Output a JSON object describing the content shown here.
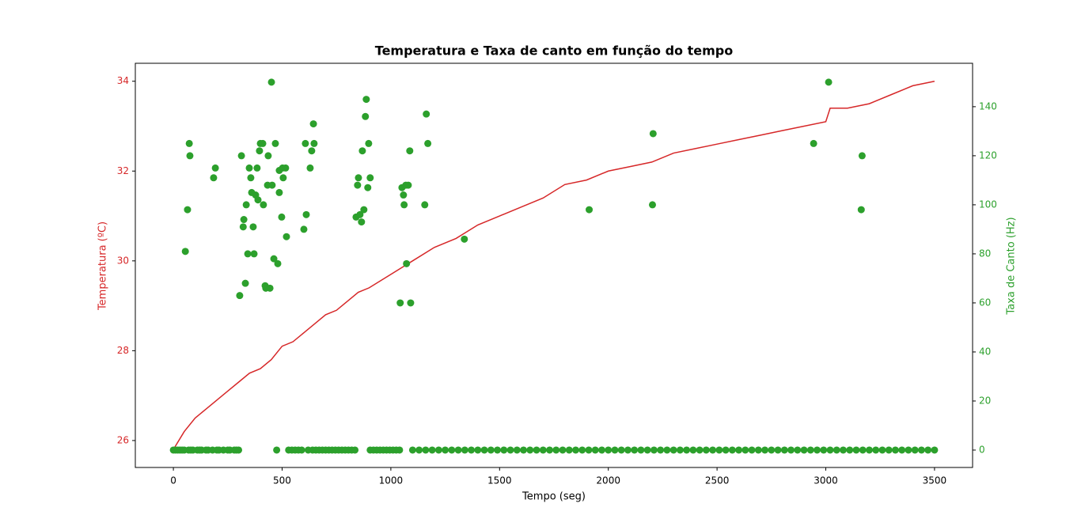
{
  "chart_data": {
    "type": "line",
    "title": "Temperatura e Taxa de canto em função do tempo",
    "xlabel": "Tempo (seg)",
    "ylabel": "Temperatura (ºC)",
    "y2label": "Taxa de Canto (Hz)",
    "xlim": [
      -175,
      3675
    ],
    "xticks": [
      0,
      500,
      1000,
      1500,
      2000,
      2500,
      3000,
      3500
    ],
    "ylim": [
      25.4,
      34.4
    ],
    "yticks": [
      26,
      28,
      30,
      32,
      34
    ],
    "y2lim": [
      -7.1,
      157.7
    ],
    "y2ticks": [
      0,
      20,
      40,
      60,
      80,
      100,
      120,
      140
    ],
    "series": [
      {
        "type": "line",
        "color": "#d62728",
        "x": [
          0,
          50,
          100,
          150,
          200,
          250,
          300,
          350,
          400,
          450,
          500,
          550,
          600,
          650,
          700,
          750,
          800,
          850,
          900,
          1000,
          1100,
          1200,
          1300,
          1400,
          1500,
          1600,
          1700,
          1800,
          1900,
          2000,
          2100,
          2200,
          2300,
          2400,
          2500,
          2600,
          2700,
          2800,
          2900,
          3000,
          3020,
          3100,
          3200,
          3300,
          3400,
          3500
        ],
        "values": [
          25.8,
          26.2,
          26.5,
          26.7,
          26.9,
          27.1,
          27.3,
          27.5,
          27.6,
          27.8,
          28.1,
          28.2,
          28.4,
          28.6,
          28.8,
          28.9,
          29.1,
          29.3,
          29.4,
          29.7,
          30.0,
          30.3,
          30.5,
          30.8,
          31.0,
          31.2,
          31.4,
          31.7,
          31.8,
          32.0,
          32.1,
          32.2,
          32.4,
          32.5,
          32.6,
          32.7,
          32.8,
          32.9,
          33.0,
          33.1,
          33.4,
          33.4,
          33.5,
          33.7,
          33.9,
          34.0
        ]
      },
      {
        "type": "scatter",
        "axis": "y2",
        "color": "#2ca02c",
        "x": [
          0,
          10,
          20,
          30,
          40,
          50,
          70,
          80,
          90,
          110,
          120,
          130,
          150,
          160,
          180,
          200,
          210,
          230,
          250,
          260,
          280,
          290,
          300,
          475,
          530,
          545,
          560,
          575,
          590,
          620,
          640,
          655,
          670,
          685,
          700,
          715,
          730,
          745,
          760,
          775,
          790,
          805,
          820,
          835,
          905,
          920,
          935,
          950,
          965,
          980,
          995,
          1010,
          1025,
          1040,
          1100,
          1130,
          1160,
          1190,
          1220,
          1250,
          1280,
          1310,
          1340,
          1370,
          1400,
          1430,
          1460,
          1490,
          1520,
          1550,
          1580,
          1610,
          1640,
          1670,
          1700,
          1730,
          1760,
          1790,
          1820,
          1850,
          1880,
          1910,
          1940,
          1970,
          2000,
          2030,
          2060,
          2090,
          2120,
          2150,
          2180,
          2210,
          2240,
          2270,
          2300,
          2330,
          2360,
          2390,
          2420,
          2450,
          2480,
          2510,
          2540,
          2570,
          2600,
          2630,
          2660,
          2690,
          2720,
          2750,
          2780,
          2810,
          2840,
          2870,
          2900,
          2930,
          2960,
          2990,
          3020,
          3050,
          3080,
          3110,
          3140,
          3170,
          3200,
          3230,
          3260,
          3290,
          3320,
          3350,
          3380,
          3410,
          3440,
          3470,
          3500,
          55,
          65,
          73,
          76,
          185,
          193,
          305,
          313,
          321,
          324,
          331,
          335,
          342,
          349,
          356,
          360,
          367,
          371,
          378,
          385,
          389,
          396,
          400,
          411,
          414,
          422,
          425,
          433,
          436,
          444,
          451,
          454,
          462,
          469,
          480,
          487,
          487,
          498,
          502,
          505,
          516,
          520,
          600,
          607,
          611,
          629,
          636,
          644,
          647,
          840,
          847,
          851,
          858,
          865,
          869,
          876,
          883,
          887,
          894,
          898,
          905,
          1043,
          1051,
          1058,
          1061,
          1069,
          1072,
          1080,
          1087,
          1091,
          1163,
          1170,
          1156,
          1338,
          1912,
          2206,
          2203,
          2944,
          3013,
          3163,
          3167
        ],
        "values": [
          0,
          0,
          0,
          0,
          0,
          0,
          0,
          0,
          0,
          0,
          0,
          0,
          0,
          0,
          0,
          0,
          0,
          0,
          0,
          0,
          0,
          0,
          0,
          0,
          0,
          0,
          0,
          0,
          0,
          0,
          0,
          0,
          0,
          0,
          0,
          0,
          0,
          0,
          0,
          0,
          0,
          0,
          0,
          0,
          0,
          0,
          0,
          0,
          0,
          0,
          0,
          0,
          0,
          0,
          0,
          0,
          0,
          0,
          0,
          0,
          0,
          0,
          0,
          0,
          0,
          0,
          0,
          0,
          0,
          0,
          0,
          0,
          0,
          0,
          0,
          0,
          0,
          0,
          0,
          0,
          0,
          0,
          0,
          0,
          0,
          0,
          0,
          0,
          0,
          0,
          0,
          0,
          0,
          0,
          0,
          0,
          0,
          0,
          0,
          0,
          0,
          0,
          0,
          0,
          0,
          0,
          0,
          0,
          0,
          0,
          0,
          0,
          0,
          0,
          0,
          0,
          0,
          0,
          0,
          0,
          0,
          0,
          0,
          0,
          0,
          0,
          0,
          0,
          0,
          0,
          0,
          0,
          0,
          0,
          0,
          81,
          98,
          125,
          120,
          111,
          115,
          63,
          120,
          91,
          94,
          68,
          100,
          80,
          115,
          111,
          105,
          91,
          80,
          104,
          115,
          102,
          122,
          125,
          125,
          100,
          67,
          66,
          108,
          120,
          66,
          150,
          108,
          78,
          125,
          76,
          105,
          114,
          95,
          115,
          111,
          115,
          87,
          90,
          125,
          96,
          115,
          122,
          133,
          125,
          95,
          108,
          111,
          96,
          93,
          122,
          98,
          136,
          143,
          107,
          125,
          111,
          60,
          107,
          104,
          100,
          108,
          76,
          108,
          122,
          60,
          137,
          125,
          100,
          86,
          98,
          129,
          100,
          125,
          150,
          98,
          120
        ]
      }
    ]
  }
}
